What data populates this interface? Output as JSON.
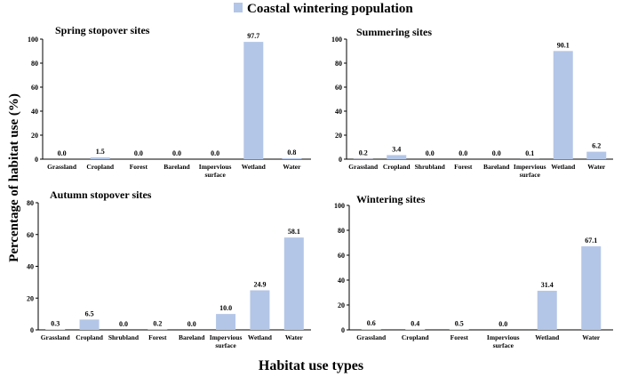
{
  "legend": {
    "label": "Coastal wintering population",
    "color": "#b4c6e7"
  },
  "ylabel": "Percentage of habitat use (%)",
  "xlabel": "Habitat use types",
  "chart_data": [
    {
      "type": "bar",
      "title": "Spring stopover sites",
      "categories": [
        "Grassland",
        "Cropland",
        "Forest",
        "Bareland",
        "Impervious surface",
        "Wetland",
        "Water"
      ],
      "values": [
        0.0,
        1.5,
        0.0,
        0.0,
        0.0,
        97.7,
        0.8
      ],
      "labels": [
        "0.0",
        "1.5",
        "0.0",
        "0.0",
        "0.0",
        "97.7",
        "0.8"
      ],
      "ylim": [
        0,
        100
      ],
      "yticks": [
        0,
        20,
        40,
        60,
        80,
        100
      ]
    },
    {
      "type": "bar",
      "title": "Summering sites",
      "categories": [
        "Grassland",
        "Cropland",
        "Shrubland",
        "Forest",
        "Bareland",
        "Impervious surface",
        "Wetland",
        "Water"
      ],
      "values": [
        0.2,
        3.4,
        0.0,
        0.0,
        0.0,
        0.1,
        90.1,
        6.2
      ],
      "labels": [
        "0.2",
        "3.4",
        "0.0",
        "0.0",
        "0.0",
        "0.1",
        "90.1",
        "6.2"
      ],
      "ylim": [
        0,
        100
      ],
      "yticks": [
        0,
        20,
        40,
        60,
        80,
        100
      ]
    },
    {
      "type": "bar",
      "title": "Autumn stopover sites",
      "categories": [
        "Grassland",
        "Cropland",
        "Shrubland",
        "Forest",
        "Bareland",
        "Impervious surface",
        "Wetland",
        "Water"
      ],
      "values": [
        0.3,
        6.5,
        0.0,
        0.2,
        0.0,
        10.0,
        24.9,
        58.1
      ],
      "labels": [
        "0.3",
        "6.5",
        "0.0",
        "0.2",
        "0.0",
        "10.0",
        "24.9",
        "58.1"
      ],
      "ylim": [
        0,
        80
      ],
      "yticks": [
        0,
        20,
        40,
        60,
        80
      ]
    },
    {
      "type": "bar",
      "title": "Wintering sites",
      "categories": [
        "Grassland",
        "Cropland",
        "Forest",
        "Impervious surface",
        "Wetland",
        "Water"
      ],
      "values": [
        0.6,
        0.4,
        0.5,
        0.0,
        31.4,
        67.1
      ],
      "labels": [
        "0.6",
        "0.4",
        "0.5",
        "0.0",
        "31.4",
        "67.1"
      ],
      "ylim": [
        0,
        100
      ],
      "yticks": [
        0,
        20,
        40,
        60,
        80,
        100
      ]
    }
  ]
}
